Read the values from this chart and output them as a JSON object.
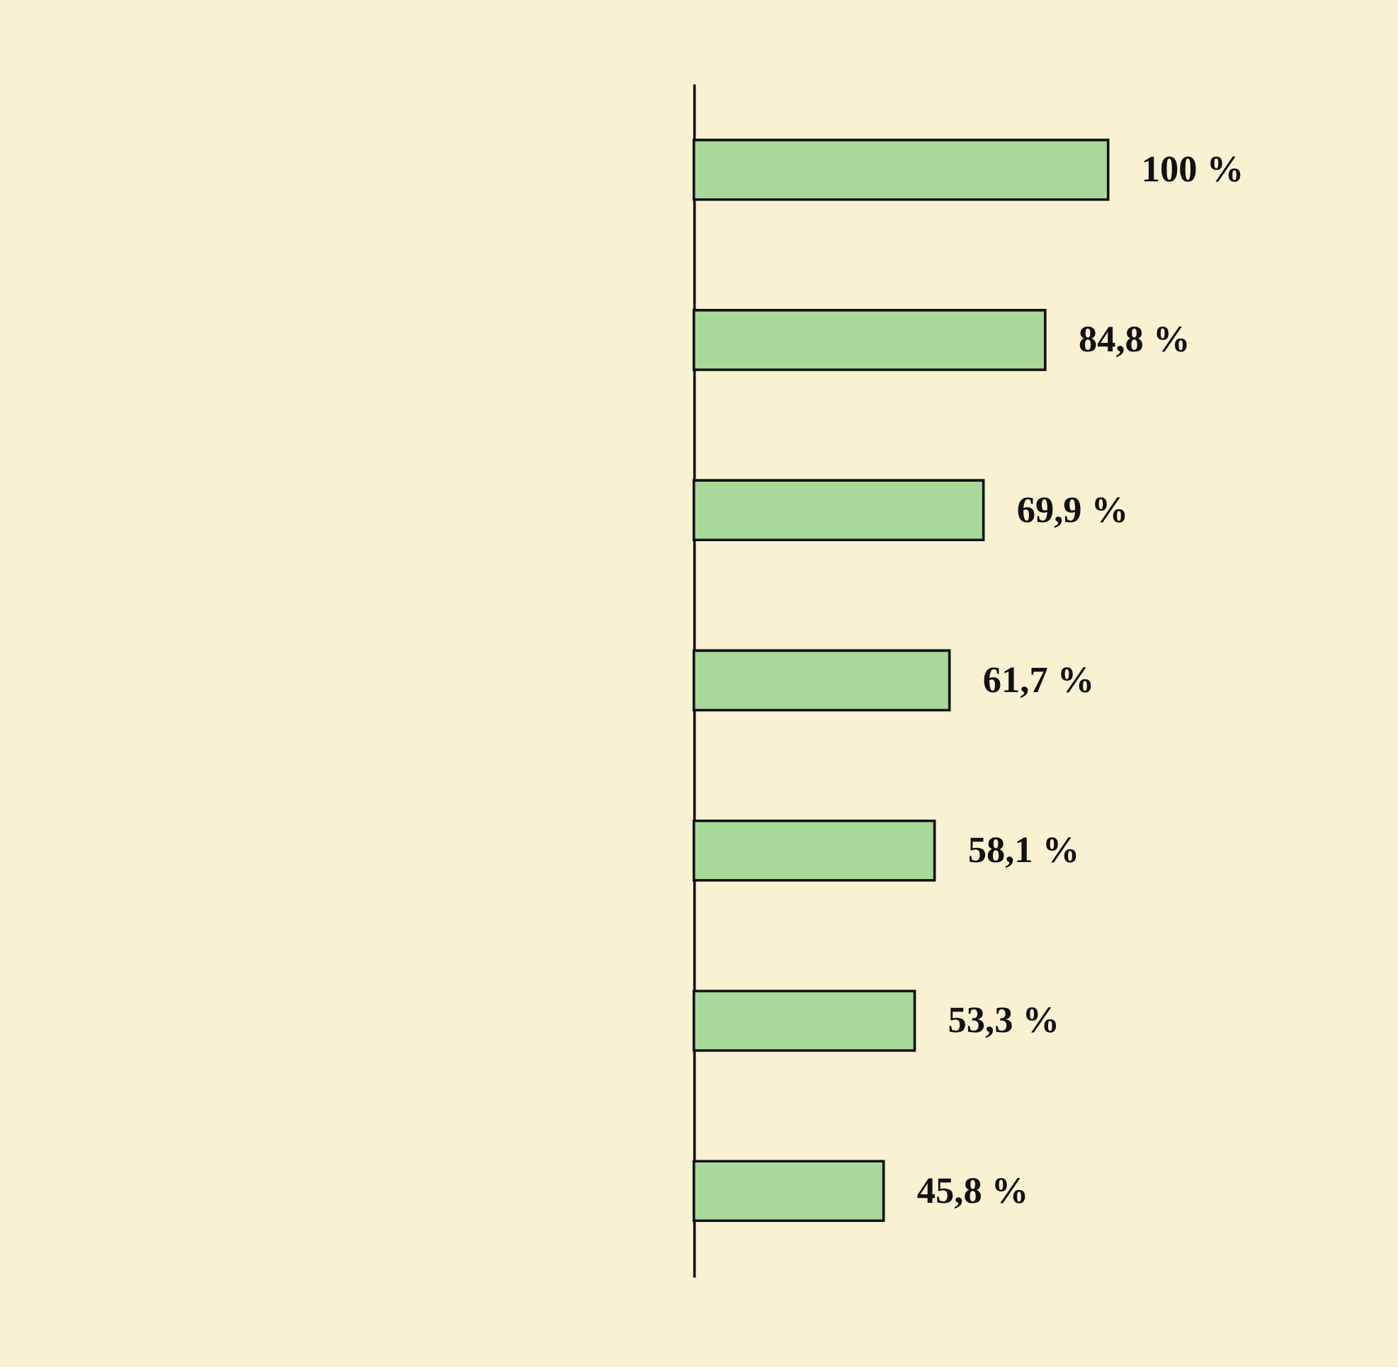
{
  "chart_data": {
    "type": "bar",
    "orientation": "horizontal",
    "categories": [
      null,
      null,
      null,
      null,
      null,
      null,
      null
    ],
    "values": [
      100,
      84.8,
      69.9,
      61.7,
      58.1,
      53.3,
      45.8
    ],
    "value_labels": [
      "100 %",
      "84,8 %",
      "69,9 %",
      "61,7 %",
      "58,1 %",
      "53,3 %",
      "45,8 %"
    ],
    "color": "#a9d89b",
    "grid": false
  }
}
